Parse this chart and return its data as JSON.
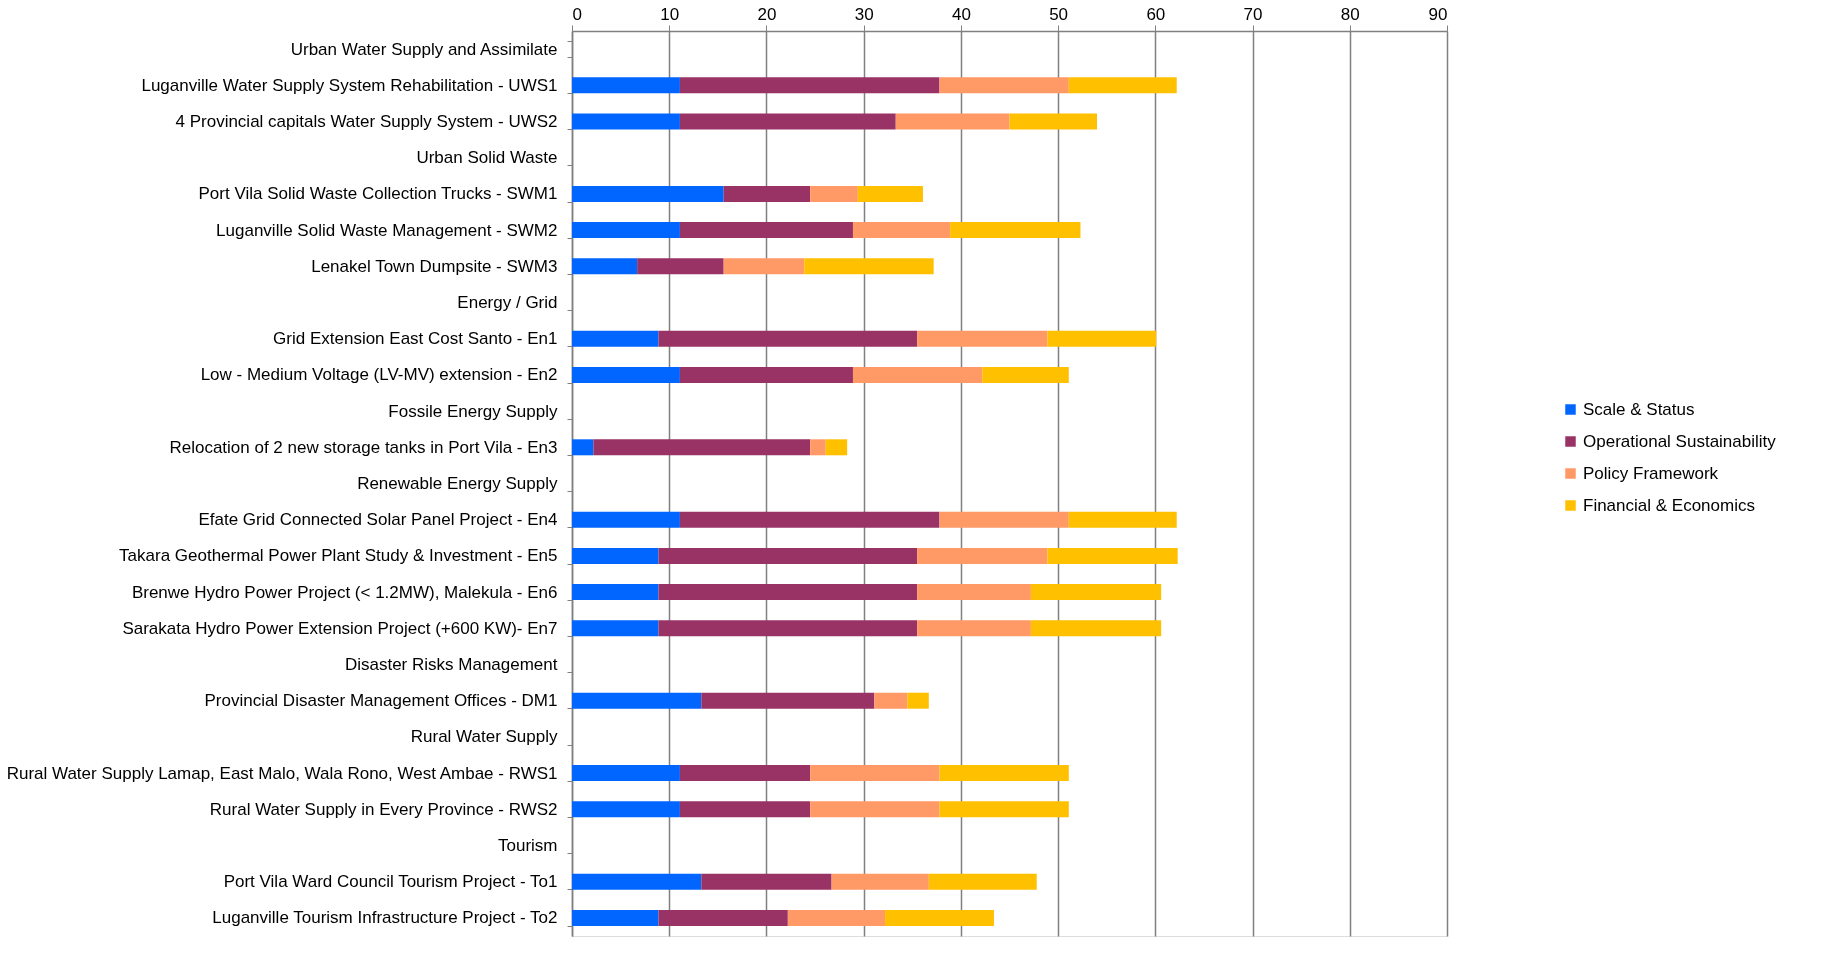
{
  "chart_data": {
    "type": "bar",
    "orientation": "horizontal",
    "stacked": true,
    "categories": [
      "Urban Water Supply and Assimilate",
      "Luganville Water Supply System Rehabilitation - UWS1",
      "4 Provincial capitals Water Supply System - UWS2",
      "Urban Solid Waste",
      "Port Vila Solid Waste Collection Trucks - SWM1",
      "Luganville Solid Waste Management - SWM2",
      "Lenakel Town Dumpsite - SWM3",
      "Energy / Grid",
      "Grid Extension East Cost Santo - En1",
      "Low - Medium Voltage (LV-MV) extension - En2",
      "Fossile Energy Supply",
      "Relocation of 2 new storage tanks in Port Vila - En3",
      "Renewable Energy Supply",
      "Efate Grid Connected Solar Panel Project - En4",
      "Takara Geothermal Power Plant Study  & Investment - En5",
      "Brenwe Hydro Power Project (< 1.2MW), Malekula - En6",
      "Sarakata Hydro Power Extension Project (+600 KW)- En7",
      "Disaster Risks Management",
      "Provincial Disaster Management Offices - DM1",
      "Rural Water Supply",
      "Rural Water Supply Lamap, East Malo, Wala Rono, West Ambae - RWS1",
      "Rural Water Supply in Every Province - RWS2",
      "Tourism",
      "Port Vila Ward Council Tourism Project - To1",
      "Luganville Tourism Infrastructure Project - To2"
    ],
    "series": [
      {
        "name": "Scale & Status",
        "color": "#0066ff",
        "values": [
          null,
          11.1,
          11.1,
          null,
          15.6,
          11.1,
          6.7,
          null,
          8.9,
          11.1,
          null,
          2.2,
          null,
          11.1,
          8.9,
          8.9,
          8.9,
          null,
          13.3,
          null,
          11.1,
          11.1,
          null,
          13.3,
          8.9
        ]
      },
      {
        "name": "Operational Sustainability",
        "color": "#993366",
        "values": [
          null,
          26.7,
          22.2,
          null,
          8.9,
          17.8,
          8.9,
          null,
          26.6,
          17.8,
          null,
          22.3,
          null,
          26.7,
          26.6,
          26.6,
          26.6,
          null,
          17.8,
          null,
          13.4,
          13.4,
          null,
          13.4,
          13.3
        ]
      },
      {
        "name": "Policy Framework",
        "color": "#ff9966",
        "values": [
          null,
          13.3,
          11.7,
          null,
          4.9,
          10.0,
          8.3,
          null,
          13.4,
          13.3,
          null,
          1.6,
          null,
          13.3,
          13.4,
          11.7,
          11.7,
          null,
          3.4,
          null,
          13.3,
          13.3,
          null,
          10.0,
          10.0
        ]
      },
      {
        "name": "Financial & Economics",
        "color": "#ffc000",
        "values": [
          null,
          11.1,
          9.0,
          null,
          6.7,
          13.4,
          13.3,
          null,
          11.2,
          8.9,
          null,
          2.2,
          null,
          11.1,
          13.4,
          13.4,
          13.4,
          null,
          2.2,
          null,
          13.3,
          13.3,
          null,
          11.1,
          11.2
        ]
      }
    ],
    "xlim": [
      0,
      90
    ],
    "xticks": [
      0,
      10,
      20,
      30,
      40,
      50,
      60,
      70,
      80,
      90
    ],
    "grid": "x",
    "legend": "right"
  }
}
